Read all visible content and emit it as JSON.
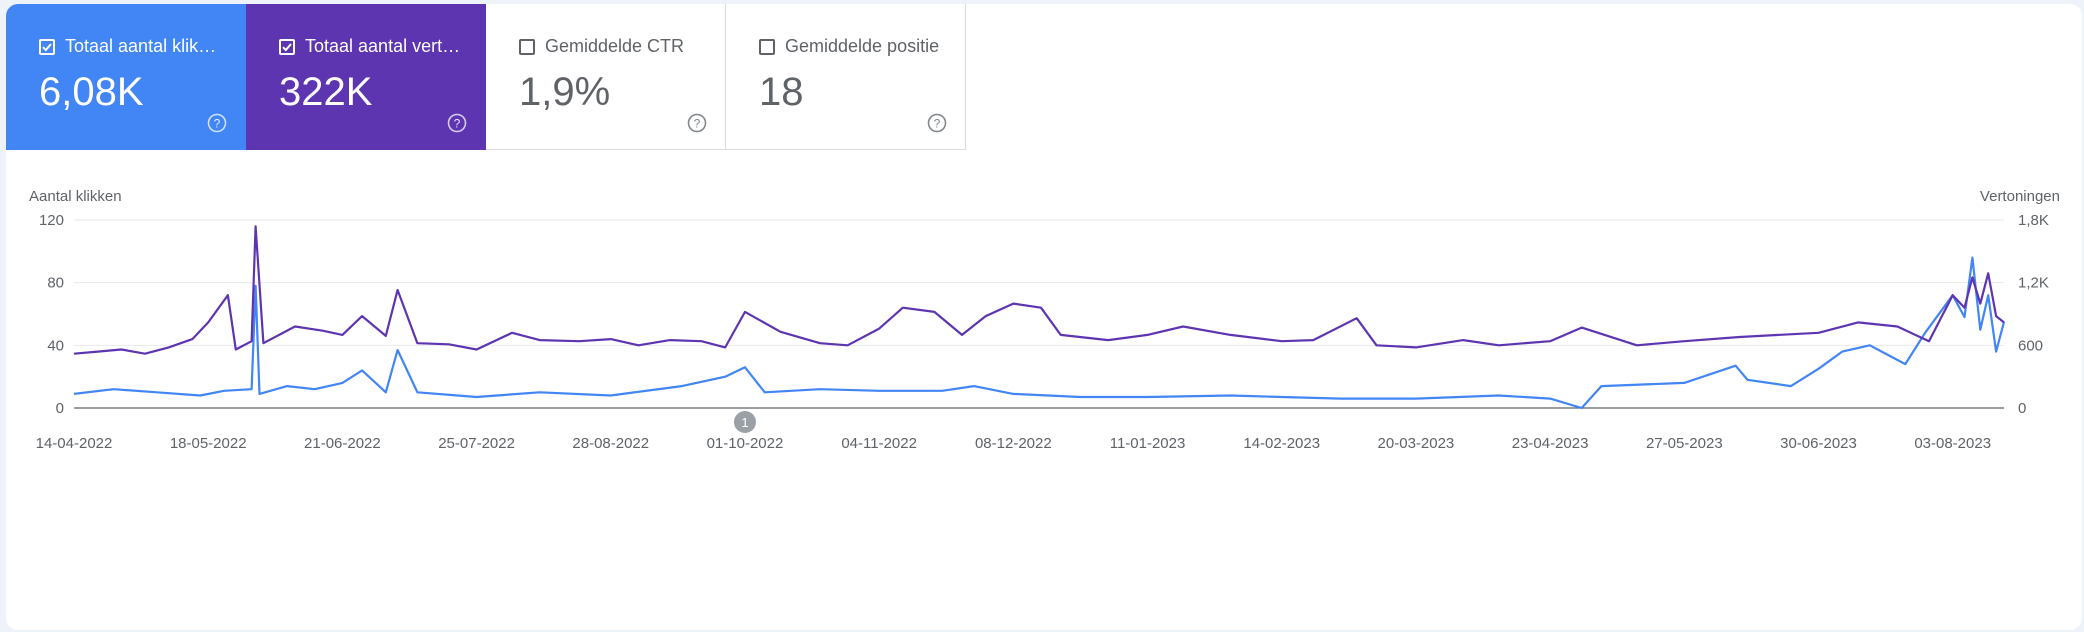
{
  "tiles": [
    {
      "label": "Totaal aantal klik…",
      "value": "6,08K",
      "checked": true,
      "color": "#4285f4"
    },
    {
      "label": "Totaal aantal vert…",
      "value": "322K",
      "checked": true,
      "color": "#5e35b1"
    },
    {
      "label": "Gemiddelde CTR",
      "value": "1,9%",
      "checked": false
    },
    {
      "label": "Gemiddelde positie",
      "value": "18",
      "checked": false
    }
  ],
  "annotation": {
    "label": "1",
    "date": "01-10-2022"
  },
  "chart_data": {
    "type": "line",
    "y_left": {
      "label": "Aantal klikken",
      "ticks": [
        "0",
        "40",
        "80",
        "120"
      ],
      "range": [
        0,
        120
      ]
    },
    "y_right": {
      "label": "Vertoningen",
      "ticks": [
        "0",
        "600",
        "1,2K",
        "1,8K"
      ],
      "range": [
        0,
        1800
      ]
    },
    "x_ticks": [
      "14-04-2022",
      "18-05-2022",
      "21-06-2022",
      "25-07-2022",
      "28-08-2022",
      "01-10-2022",
      "04-11-2022",
      "08-12-2022",
      "11-01-2023",
      "14-02-2023",
      "20-03-2023",
      "23-04-2023",
      "27-05-2023",
      "30-06-2023",
      "03-08-2023"
    ],
    "x_range": [
      "14-04-2022",
      "16-08-2023"
    ],
    "grid": true,
    "series": [
      {
        "axis": "left",
        "color": "#4285f4",
        "points": [
          [
            "14-04-2022",
            9
          ],
          [
            "24-04-2022",
            12
          ],
          [
            "05-05-2022",
            10
          ],
          [
            "16-05-2022",
            8
          ],
          [
            "22-05-2022",
            11
          ],
          [
            "29-05-2022",
            12
          ],
          [
            "30-05-2022",
            78
          ],
          [
            "31-05-2022",
            9
          ],
          [
            "07-06-2022",
            14
          ],
          [
            "14-06-2022",
            12
          ],
          [
            "21-06-2022",
            16
          ],
          [
            "26-06-2022",
            24
          ],
          [
            "02-07-2022",
            10
          ],
          [
            "05-07-2022",
            37
          ],
          [
            "10-07-2022",
            10
          ],
          [
            "25-07-2022",
            7
          ],
          [
            "10-08-2022",
            10
          ],
          [
            "28-08-2022",
            8
          ],
          [
            "15-09-2022",
            14
          ],
          [
            "26-09-2022",
            20
          ],
          [
            "01-10-2022",
            26
          ],
          [
            "06-10-2022",
            10
          ],
          [
            "20-10-2022",
            12
          ],
          [
            "04-11-2022",
            11
          ],
          [
            "20-11-2022",
            11
          ],
          [
            "28-11-2022",
            14
          ],
          [
            "08-12-2022",
            9
          ],
          [
            "25-12-2022",
            7
          ],
          [
            "11-01-2023",
            7
          ],
          [
            "01-02-2023",
            8
          ],
          [
            "14-02-2023",
            7
          ],
          [
            "01-03-2023",
            6
          ],
          [
            "20-03-2023",
            6
          ],
          [
            "10-04-2023",
            8
          ],
          [
            "23-04-2023",
            6
          ],
          [
            "01-05-2023",
            0
          ],
          [
            "06-05-2023",
            14
          ],
          [
            "27-05-2023",
            16
          ],
          [
            "09-06-2023",
            27
          ],
          [
            "12-06-2023",
            18
          ],
          [
            "23-06-2023",
            14
          ],
          [
            "30-06-2023",
            25
          ],
          [
            "06-07-2023",
            36
          ],
          [
            "13-07-2023",
            40
          ],
          [
            "22-07-2023",
            28
          ],
          [
            "27-07-2023",
            48
          ],
          [
            "03-08-2023",
            72
          ],
          [
            "06-08-2023",
            58
          ],
          [
            "08-08-2023",
            96
          ],
          [
            "10-08-2023",
            50
          ],
          [
            "12-08-2023",
            72
          ],
          [
            "14-08-2023",
            36
          ],
          [
            "16-08-2023",
            55
          ]
        ]
      },
      {
        "axis": "right",
        "color": "#5e35b1",
        "points": [
          [
            "14-04-2022",
            520
          ],
          [
            "20-04-2022",
            540
          ],
          [
            "26-04-2022",
            560
          ],
          [
            "02-05-2022",
            520
          ],
          [
            "08-05-2022",
            580
          ],
          [
            "14-05-2022",
            660
          ],
          [
            "18-05-2022",
            820
          ],
          [
            "23-05-2022",
            1080
          ],
          [
            "25-05-2022",
            560
          ],
          [
            "29-05-2022",
            640
          ],
          [
            "30-05-2022",
            1740
          ],
          [
            "01-06-2022",
            620
          ],
          [
            "09-06-2022",
            780
          ],
          [
            "16-06-2022",
            740
          ],
          [
            "21-06-2022",
            700
          ],
          [
            "26-06-2022",
            880
          ],
          [
            "02-07-2022",
            690
          ],
          [
            "05-07-2022",
            1130
          ],
          [
            "10-07-2022",
            620
          ],
          [
            "18-07-2022",
            610
          ],
          [
            "25-07-2022",
            560
          ],
          [
            "03-08-2022",
            720
          ],
          [
            "10-08-2022",
            650
          ],
          [
            "20-08-2022",
            640
          ],
          [
            "28-08-2022",
            660
          ],
          [
            "04-09-2022",
            600
          ],
          [
            "12-09-2022",
            650
          ],
          [
            "20-09-2022",
            640
          ],
          [
            "26-09-2022",
            580
          ],
          [
            "01-10-2022",
            920
          ],
          [
            "10-10-2022",
            730
          ],
          [
            "20-10-2022",
            620
          ],
          [
            "27-10-2022",
            600
          ],
          [
            "04-11-2022",
            760
          ],
          [
            "10-11-2022",
            960
          ],
          [
            "18-11-2022",
            920
          ],
          [
            "25-11-2022",
            700
          ],
          [
            "01-12-2022",
            880
          ],
          [
            "08-12-2022",
            1000
          ],
          [
            "15-12-2022",
            960
          ],
          [
            "20-12-2022",
            700
          ],
          [
            "01-01-2023",
            650
          ],
          [
            "11-01-2023",
            700
          ],
          [
            "20-01-2023",
            780
          ],
          [
            "01-02-2023",
            700
          ],
          [
            "14-02-2023",
            640
          ],
          [
            "22-02-2023",
            650
          ],
          [
            "05-03-2023",
            860
          ],
          [
            "10-03-2023",
            600
          ],
          [
            "20-03-2023",
            580
          ],
          [
            "01-04-2023",
            650
          ],
          [
            "10-04-2023",
            600
          ],
          [
            "23-04-2023",
            640
          ],
          [
            "01-05-2023",
            770
          ],
          [
            "15-05-2023",
            600
          ],
          [
            "27-05-2023",
            640
          ],
          [
            "10-06-2023",
            680
          ],
          [
            "30-06-2023",
            720
          ],
          [
            "10-07-2023",
            820
          ],
          [
            "20-07-2023",
            780
          ],
          [
            "28-07-2023",
            640
          ],
          [
            "03-08-2023",
            1080
          ],
          [
            "06-08-2023",
            960
          ],
          [
            "08-08-2023",
            1250
          ],
          [
            "10-08-2023",
            1000
          ],
          [
            "12-08-2023",
            1290
          ],
          [
            "14-08-2023",
            880
          ],
          [
            "16-08-2023",
            820
          ]
        ]
      }
    ]
  }
}
